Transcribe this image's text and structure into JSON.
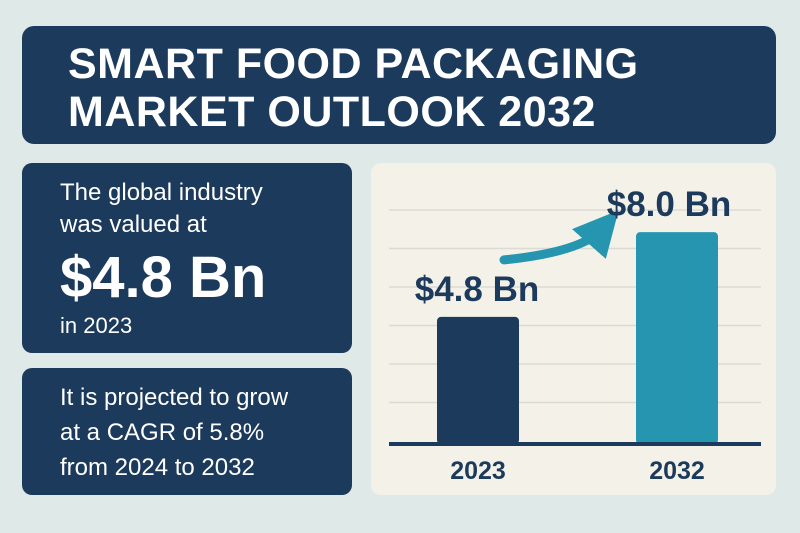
{
  "title": {
    "line1": "SMART FOOD PACKAGING",
    "line2": "MARKET OUTLOOK 2032"
  },
  "valuation_card": {
    "line1": "The global industry",
    "line2": "was valued at",
    "value": "$4.8 Bn",
    "year_text": "in 2023"
  },
  "projection_card": {
    "line1": "It is projected to grow",
    "line2": "at a CAGR of 5.8%",
    "line3": "from 2024 to 2032"
  },
  "colors": {
    "navy": "#1c3a5b",
    "teal": "#2696b0",
    "panel": "#f4f1e8",
    "background": "#dfe9e7",
    "grid": "#dcdad2"
  },
  "chart_data": {
    "type": "bar",
    "categories": [
      "2023",
      "2032"
    ],
    "values": [
      4.8,
      8.0
    ],
    "data_labels": [
      "$4.8 Bn",
      "$8.0 Bn"
    ],
    "bar_colors": [
      "#1c3a5b",
      "#2696b0"
    ],
    "title": "",
    "xlabel": "",
    "ylabel": "",
    "ylim": [
      0,
      8.8
    ],
    "grid": true,
    "legend": "none",
    "annotation": "growth-arrow"
  }
}
